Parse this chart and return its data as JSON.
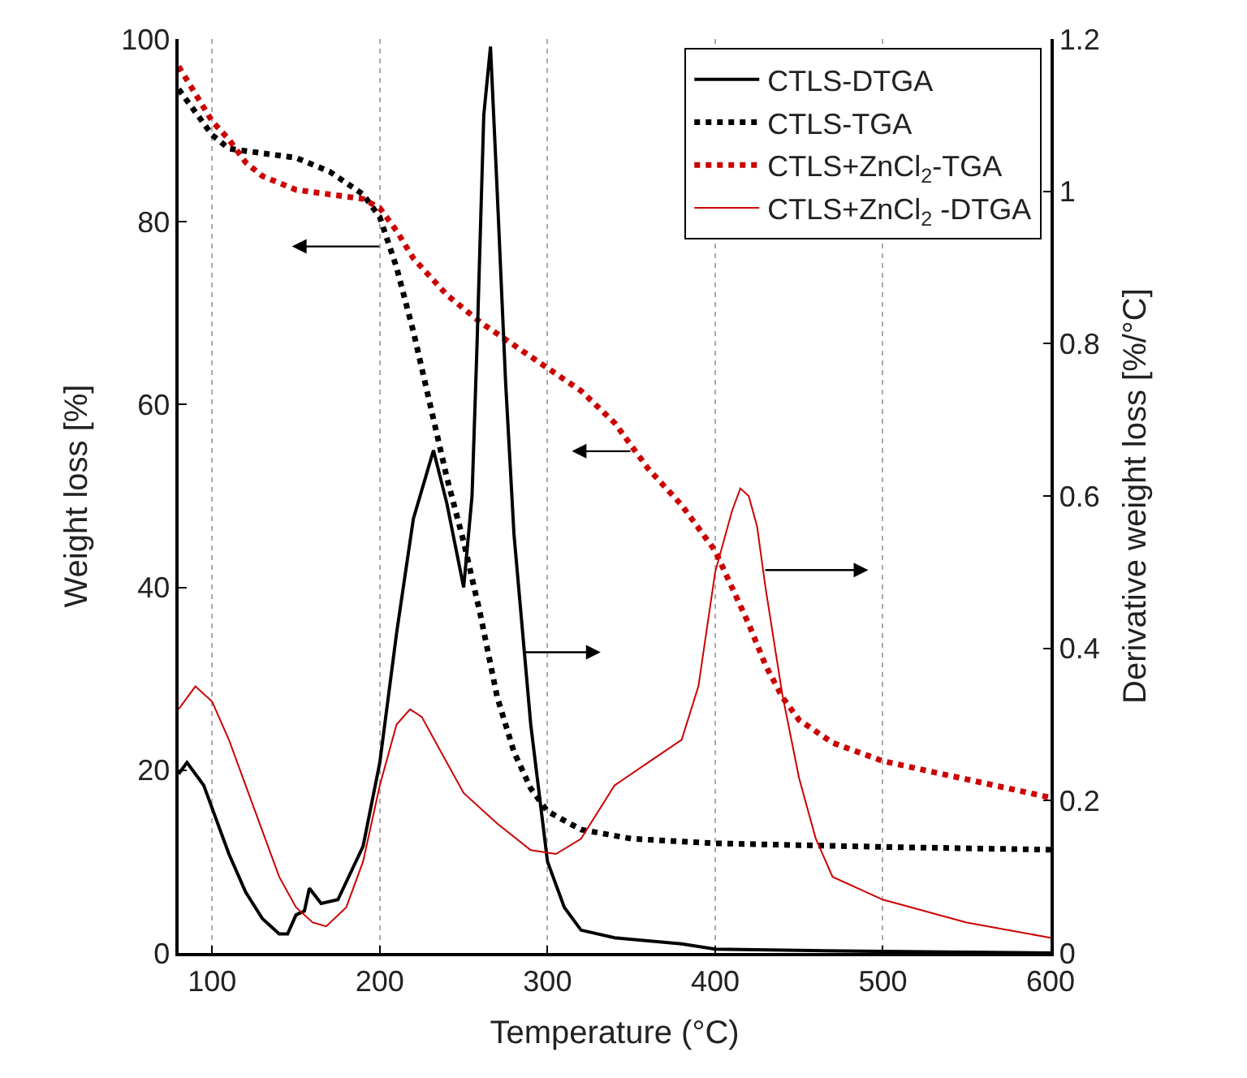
{
  "chart_data": {
    "type": "line",
    "xlabel": "Temperature (°C)",
    "ylabel": "Weight loss [%]",
    "y2label": "Derivative weight loss [%/°C]",
    "xlim": [
      80,
      600
    ],
    "xticks": [
      100,
      200,
      300,
      400,
      500,
      600
    ],
    "ylim": [
      0,
      100
    ],
    "yticks": [
      0,
      20,
      40,
      60,
      80,
      100
    ],
    "y2lim": [
      0,
      1.2
    ],
    "y2ticks": [
      0,
      0.2,
      0.4,
      0.6,
      0.8,
      1,
      1.2
    ],
    "grid": "x",
    "legend": "top right",
    "series": [
      {
        "name": "CTLS-DTGA",
        "color": "#000000",
        "axis": "y2",
        "line_style": "solid",
        "x": [
          80,
          85,
          95,
          110,
          120,
          130,
          140,
          145,
          150,
          155,
          158,
          165,
          175,
          190,
          200,
          210,
          220,
          228,
          232,
          240,
          250,
          255,
          258,
          262,
          266,
          270,
          275,
          280,
          290,
          300,
          310,
          320,
          340,
          380,
          400,
          500,
          600
        ],
        "values": [
          0.235,
          0.25,
          0.22,
          0.13,
          0.08,
          0.045,
          0.025,
          0.025,
          0.05,
          0.055,
          0.085,
          0.065,
          0.07,
          0.14,
          0.25,
          0.42,
          0.57,
          0.63,
          0.66,
          0.59,
          0.48,
          0.6,
          0.8,
          1.1,
          1.19,
          1.0,
          0.75,
          0.55,
          0.3,
          0.12,
          0.06,
          0.03,
          0.02,
          0.012,
          0.005,
          0.002,
          0
        ]
      },
      {
        "name": "CTLS-TGA",
        "color": "#000000",
        "axis": "y",
        "line_style": "dotted",
        "x": [
          80,
          90,
          100,
          110,
          130,
          150,
          170,
          190,
          200,
          210,
          220,
          230,
          240,
          250,
          260,
          270,
          280,
          290,
          300,
          320,
          350,
          400,
          450,
          500,
          600
        ],
        "values": [
          94.5,
          92,
          89.5,
          88,
          87.5,
          87,
          85.5,
          83,
          80.5,
          75,
          68,
          60,
          52,
          45,
          37,
          28,
          22,
          18,
          15.5,
          13.5,
          12.5,
          12,
          11.8,
          11.6,
          11.3
        ]
      },
      {
        "name": "CTLS+ZnCl$_{2}$-TGA",
        "color": "#cc0000",
        "axis": "y",
        "line_style": "dotted",
        "x": [
          80,
          90,
          100,
          110,
          120,
          130,
          150,
          170,
          190,
          200,
          210,
          220,
          240,
          260,
          280,
          300,
          320,
          340,
          360,
          380,
          400,
          410,
          420,
          430,
          440,
          450,
          470,
          500,
          550,
          600
        ],
        "values": [
          97,
          94,
          91,
          89,
          86.5,
          85,
          83.5,
          83,
          82.5,
          81.5,
          79,
          76,
          72,
          69,
          66.5,
          64,
          61.5,
          58,
          53,
          49,
          44,
          40,
          36,
          31.5,
          28,
          25.5,
          23,
          21,
          19,
          17
        ]
      },
      {
        "name": "CTLS+ZnCl$_{2}$ -DTGA",
        "color": "#cc0000",
        "axis": "y2",
        "line_style": "solid",
        "x": [
          80,
          90,
          100,
          110,
          120,
          130,
          140,
          150,
          160,
          168,
          180,
          190,
          200,
          210,
          218,
          225,
          235,
          250,
          270,
          290,
          305,
          320,
          340,
          360,
          380,
          390,
          400,
          410,
          415,
          420,
          425,
          430,
          440,
          450,
          460,
          470,
          500,
          550,
          600
        ],
        "values": [
          0.32,
          0.35,
          0.33,
          0.28,
          0.22,
          0.16,
          0.1,
          0.06,
          0.04,
          0.035,
          0.06,
          0.12,
          0.22,
          0.3,
          0.32,
          0.31,
          0.27,
          0.21,
          0.17,
          0.135,
          0.13,
          0.15,
          0.22,
          0.25,
          0.28,
          0.35,
          0.5,
          0.58,
          0.61,
          0.6,
          0.56,
          0.48,
          0.34,
          0.23,
          0.15,
          0.1,
          0.07,
          0.04,
          0.02
        ]
      }
    ]
  }
}
